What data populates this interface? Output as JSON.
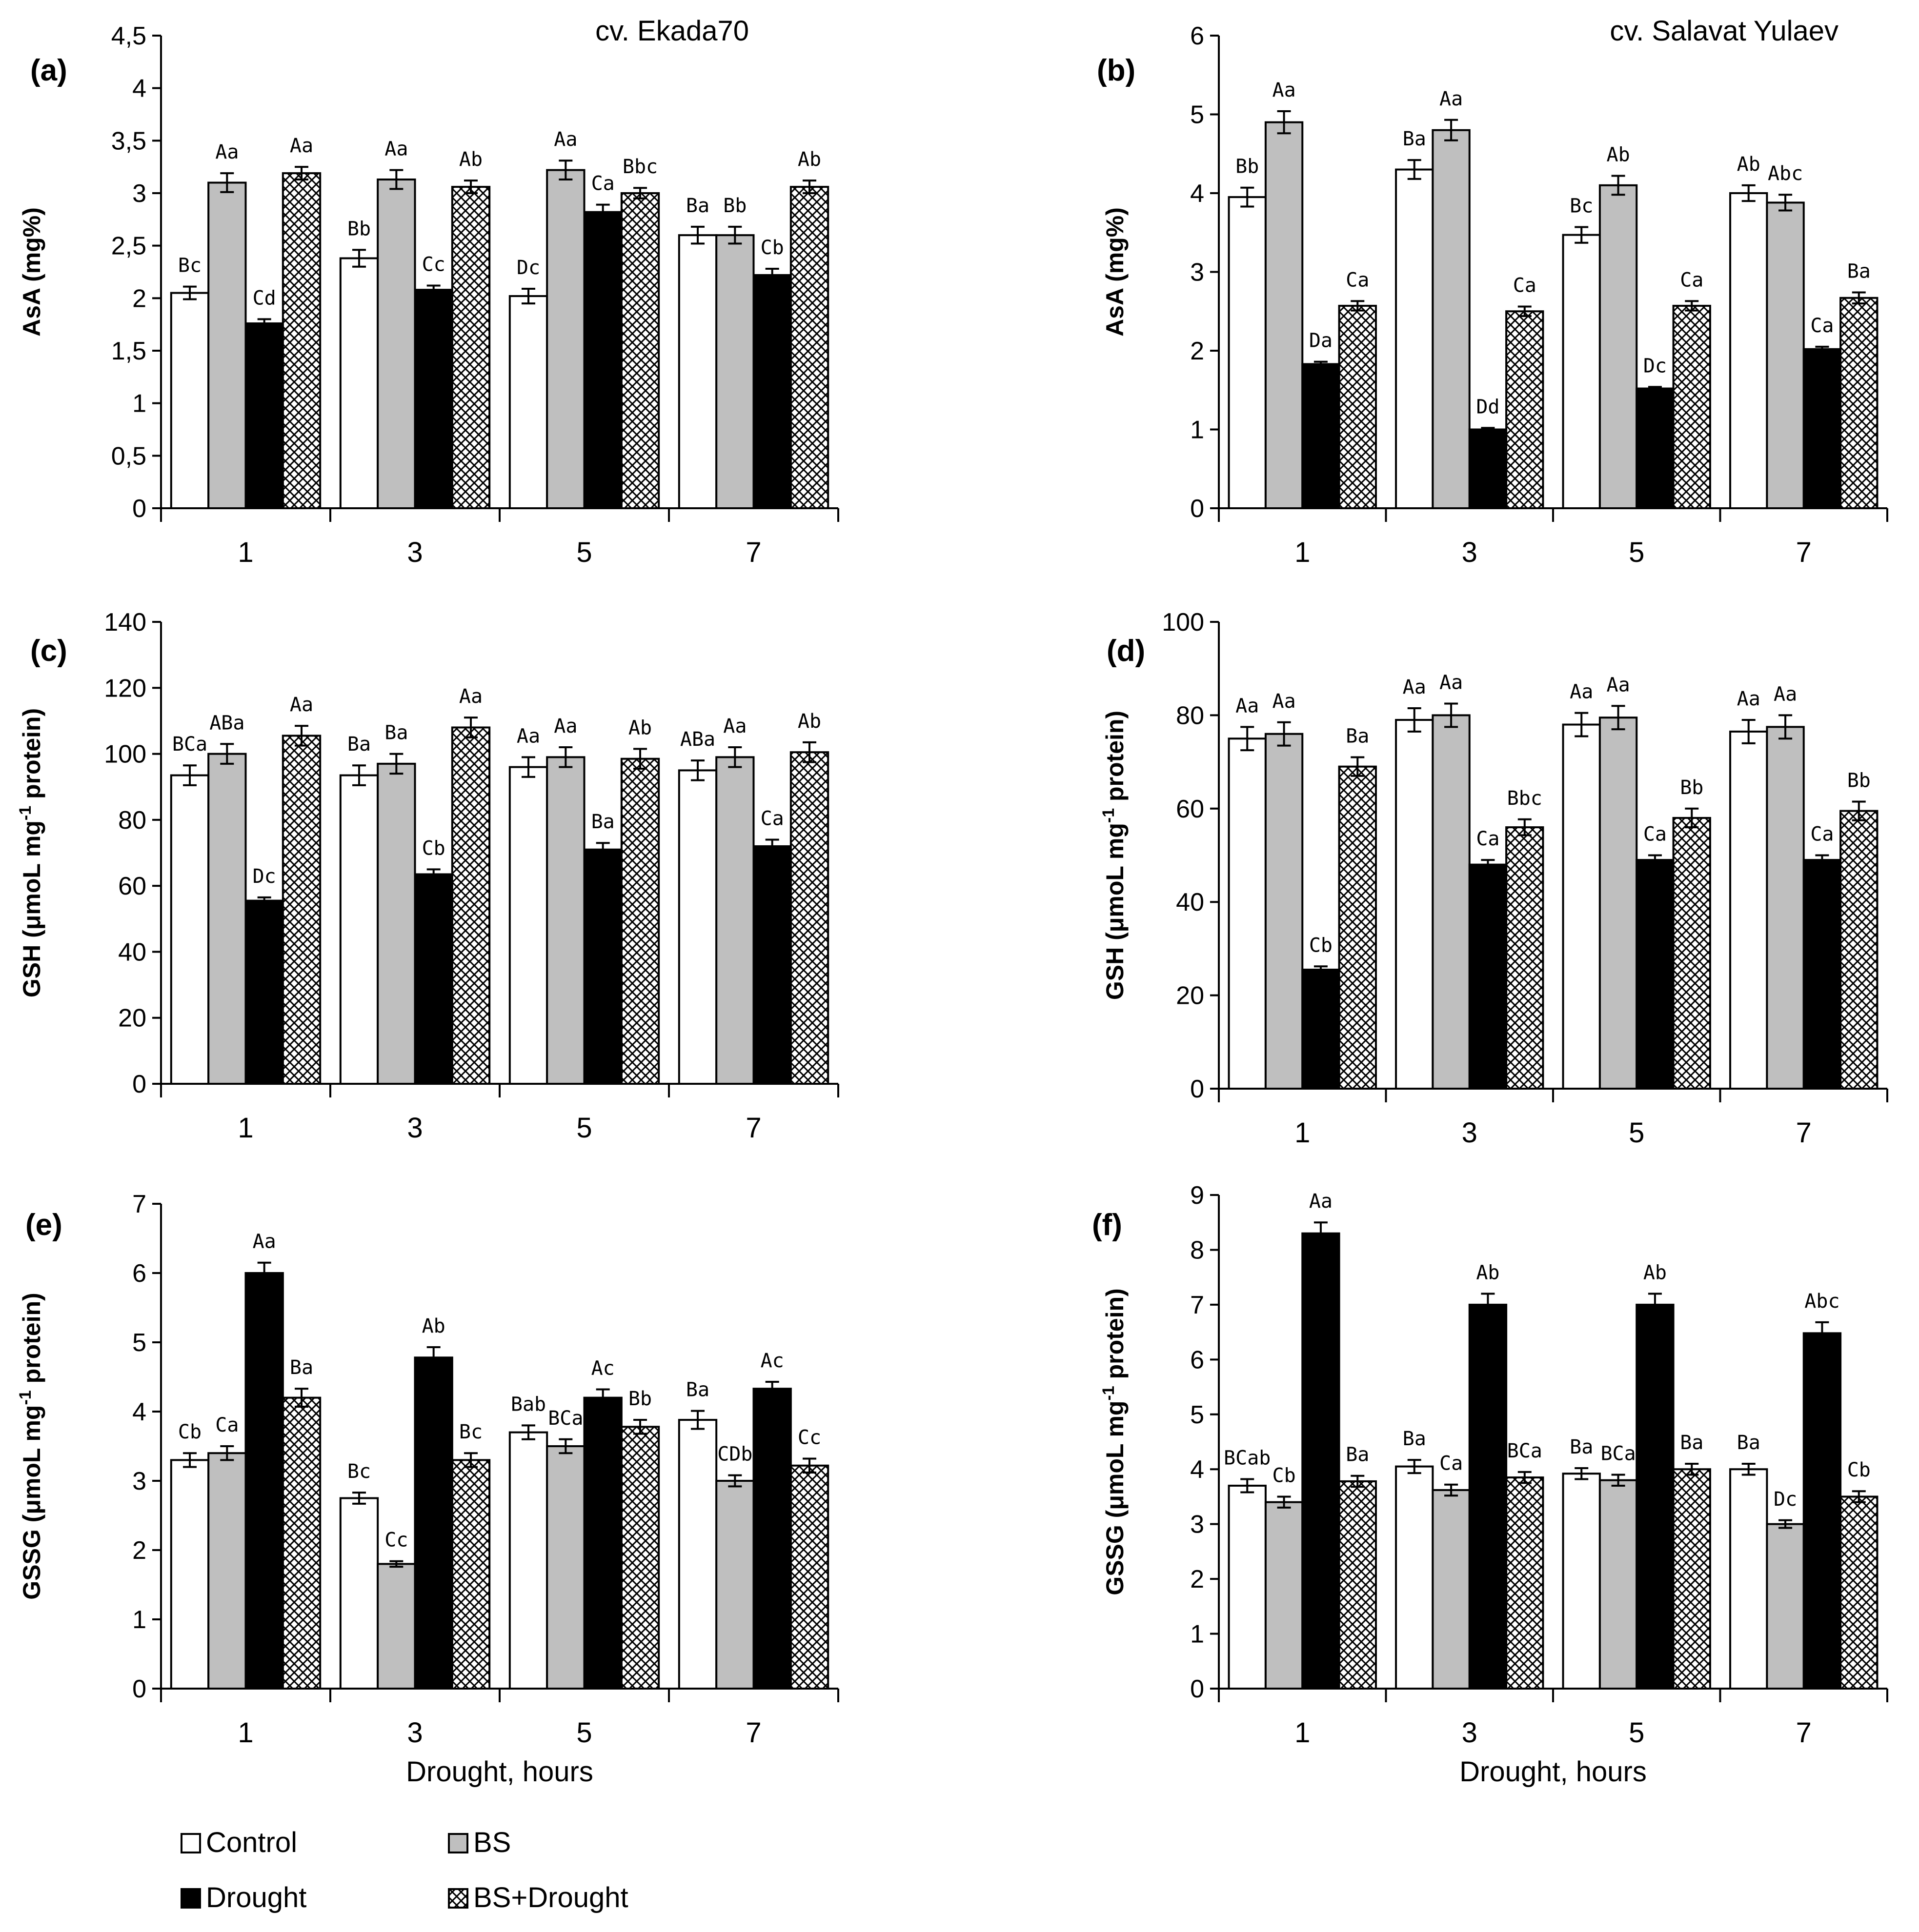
{
  "series": [
    {
      "name": "Control",
      "fill": "#ffffff"
    },
    {
      "name": "BS",
      "fill": "#bfbfbf"
    },
    {
      "name": "Drought",
      "fill": "#000000"
    },
    {
      "name": "BS+Drought",
      "fill": "pattern"
    }
  ],
  "chart_data": [
    {
      "type": "bar",
      "panel": "(a)",
      "cultivar": "cv. Ekada70",
      "ylabel": "AsA (mg%)",
      "xlabel": "",
      "categories": [
        "1",
        "3",
        "5",
        "7"
      ],
      "ylim": [
        0,
        4.5
      ],
      "yticks": [
        "0",
        "0,5",
        "1",
        "1,5",
        "2",
        "2,5",
        "3",
        "3,5",
        "4",
        "4,5"
      ],
      "ystep": 0.5,
      "series": [
        {
          "name": "Control",
          "values": [
            2.05,
            2.38,
            2.02,
            2.6
          ],
          "errors": [
            0.06,
            0.08,
            0.07,
            0.08
          ],
          "labels": [
            "Bc",
            "Bb",
            "Dc",
            "Ba"
          ]
        },
        {
          "name": "BS",
          "values": [
            3.1,
            3.13,
            3.22,
            2.6
          ],
          "errors": [
            0.09,
            0.09,
            0.09,
            0.08
          ],
          "labels": [
            "Aa",
            "Aa",
            "Aa",
            "Bb"
          ]
        },
        {
          "name": "Drought",
          "values": [
            1.76,
            2.08,
            2.82,
            2.22
          ],
          "errors": [
            0.04,
            0.04,
            0.07,
            0.06
          ],
          "labels": [
            "Cd",
            "Cc",
            "Ca",
            "Cb"
          ]
        },
        {
          "name": "BS+Drought",
          "values": [
            3.19,
            3.06,
            3.0,
            3.06
          ],
          "errors": [
            0.06,
            0.06,
            0.05,
            0.06
          ],
          "labels": [
            "Aa",
            "Ab",
            "Bbc",
            "Ab"
          ]
        }
      ]
    },
    {
      "type": "bar",
      "panel": "(b)",
      "cultivar": "cv. Salavat Yulaev",
      "ylabel": "AsA (mg%)",
      "xlabel": "",
      "categories": [
        "1",
        "3",
        "5",
        "7"
      ],
      "ylim": [
        0,
        6
      ],
      "yticks": [
        "0",
        "1",
        "2",
        "3",
        "4",
        "5",
        "6"
      ],
      "ystep": 1,
      "series": [
        {
          "name": "Control",
          "values": [
            3.95,
            4.3,
            3.47,
            4.0
          ],
          "errors": [
            0.12,
            0.12,
            0.1,
            0.1
          ],
          "labels": [
            "Bb",
            "Ba",
            "Bc",
            "Ab"
          ]
        },
        {
          "name": "BS",
          "values": [
            4.9,
            4.8,
            4.1,
            3.88
          ],
          "errors": [
            0.14,
            0.13,
            0.12,
            0.1
          ],
          "labels": [
            "Aa",
            "Aa",
            "Ab",
            "Abc"
          ]
        },
        {
          "name": "Drought",
          "values": [
            1.83,
            1.0,
            1.52,
            2.02
          ],
          "errors": [
            0.03,
            0.02,
            0.02,
            0.03
          ],
          "labels": [
            "Da",
            "Dd",
            "Dc",
            "Ca"
          ]
        },
        {
          "name": "BS+Drought",
          "values": [
            2.57,
            2.5,
            2.57,
            2.67
          ],
          "errors": [
            0.06,
            0.06,
            0.06,
            0.07
          ],
          "labels": [
            "Ca",
            "Ca",
            "Ca",
            "Ba"
          ]
        }
      ]
    },
    {
      "type": "bar",
      "panel": "(c)",
      "cultivar": "",
      "ylabel": "GSH (μmoL mg",
      "ylabel_sup": "-1",
      "ylabel_tail": " protein)",
      "xlabel": "",
      "categories": [
        "1",
        "3",
        "5",
        "7"
      ],
      "ylim": [
        0,
        140
      ],
      "yticks": [
        "0",
        "20",
        "40",
        "60",
        "80",
        "100",
        "120",
        "140"
      ],
      "ystep": 20,
      "series": [
        {
          "name": "Control",
          "values": [
            93.5,
            93.5,
            96,
            95
          ],
          "errors": [
            3,
            3,
            3,
            3
          ],
          "labels": [
            "BCa",
            "Ba",
            "Aa",
            "ABa"
          ]
        },
        {
          "name": "BS",
          "values": [
            100,
            97,
            99,
            99
          ],
          "errors": [
            3,
            3,
            3,
            3
          ],
          "labels": [
            "ABa",
            "Ba",
            "Aa",
            "Aa"
          ]
        },
        {
          "name": "Drought",
          "values": [
            55.5,
            63.5,
            71,
            72
          ],
          "errors": [
            1,
            1.5,
            2,
            2
          ],
          "labels": [
            "Dc",
            "Cb",
            "Ba",
            "Ca"
          ]
        },
        {
          "name": "BS+Drought",
          "values": [
            105.5,
            108,
            98.5,
            100.5
          ],
          "errors": [
            3,
            3,
            3,
            3
          ],
          "labels": [
            "Aa",
            "Aa",
            "Ab",
            "Ab"
          ]
        }
      ]
    },
    {
      "type": "bar",
      "panel": "(d)",
      "cultivar": "",
      "ylabel": "GSH (μmoL mg",
      "ylabel_sup": "-1",
      "ylabel_tail": " protein)",
      "xlabel": "",
      "categories": [
        "1",
        "3",
        "5",
        "7"
      ],
      "ylim": [
        0,
        100
      ],
      "yticks": [
        "0",
        "20",
        "40",
        "60",
        "80",
        "100"
      ],
      "ystep": 20,
      "series": [
        {
          "name": "Control",
          "values": [
            75,
            79,
            78,
            76.5
          ],
          "errors": [
            2.5,
            2.5,
            2.5,
            2.5
          ],
          "labels": [
            "Aa",
            "Aa",
            "Aa",
            "Aa"
          ]
        },
        {
          "name": "BS",
          "values": [
            76,
            80,
            79.5,
            77.5
          ],
          "errors": [
            2.5,
            2.5,
            2.5,
            2.5
          ],
          "labels": [
            "Aa",
            "Aa",
            "Aa",
            "Aa"
          ]
        },
        {
          "name": "Drought",
          "values": [
            25.5,
            48,
            49,
            49
          ],
          "errors": [
            0.7,
            1,
            1,
            1
          ],
          "labels": [
            "Cb",
            "Ca",
            "Ca",
            "Ca"
          ]
        },
        {
          "name": "BS+Drought",
          "values": [
            69,
            56,
            58,
            59.5
          ],
          "errors": [
            2,
            1.7,
            2,
            2
          ],
          "labels": [
            "Ba",
            "Bbc",
            "Bb",
            "Bb"
          ]
        }
      ]
    },
    {
      "type": "bar",
      "panel": "(e)",
      "cultivar": "",
      "ylabel": "GSSG (μmoL mg",
      "ylabel_sup": "-1",
      "ylabel_tail": " protein)",
      "xlabel": "Drought, hours",
      "categories": [
        "1",
        "3",
        "5",
        "7"
      ],
      "ylim": [
        0,
        7
      ],
      "yticks": [
        "0",
        "1",
        "2",
        "3",
        "4",
        "5",
        "6",
        "7"
      ],
      "ystep": 1,
      "series": [
        {
          "name": "Control",
          "values": [
            3.3,
            2.75,
            3.7,
            3.88
          ],
          "errors": [
            0.1,
            0.08,
            0.1,
            0.13
          ],
          "labels": [
            "Cb",
            "Bc",
            "Bab",
            "Ba"
          ]
        },
        {
          "name": "BS",
          "values": [
            3.4,
            1.8,
            3.5,
            3.0
          ],
          "errors": [
            0.1,
            0.04,
            0.1,
            0.08
          ],
          "labels": [
            "Ca",
            "Cc",
            "BCa",
            "CDb"
          ]
        },
        {
          "name": "Drought",
          "values": [
            6.0,
            4.78,
            4.2,
            4.33
          ],
          "errors": [
            0.15,
            0.15,
            0.12,
            0.1
          ],
          "labels": [
            "Aa",
            "Ab",
            "Ac",
            "Ac"
          ]
        },
        {
          "name": "BS+Drought",
          "values": [
            4.2,
            3.3,
            3.78,
            3.22
          ],
          "errors": [
            0.13,
            0.1,
            0.1,
            0.1
          ],
          "labels": [
            "Ba",
            "Bc",
            "Bb",
            "Cc"
          ]
        }
      ]
    },
    {
      "type": "bar",
      "panel": "(f)",
      "cultivar": "",
      "ylabel": "GSSG (μmoL mg",
      "ylabel_sup": "-1",
      "ylabel_tail": " protein)",
      "xlabel": "Drought, hours",
      "categories": [
        "1",
        "3",
        "5",
        "7"
      ],
      "ylim": [
        0,
        9
      ],
      "yticks": [
        "0",
        "1",
        "2",
        "3",
        "4",
        "5",
        "6",
        "7",
        "8",
        "9"
      ],
      "ystep": 1,
      "series": [
        {
          "name": "Control",
          "values": [
            3.7,
            4.05,
            3.92,
            4.0
          ],
          "errors": [
            0.12,
            0.12,
            0.1,
            0.1
          ],
          "labels": [
            "BCab",
            "Ba",
            "Ba",
            "Ba"
          ]
        },
        {
          "name": "BS",
          "values": [
            3.4,
            3.62,
            3.8,
            3.0
          ],
          "errors": [
            0.1,
            0.1,
            0.1,
            0.07
          ],
          "labels": [
            "Cb",
            "Ca",
            "BCa",
            "Dc"
          ]
        },
        {
          "name": "Drought",
          "values": [
            8.3,
            7.0,
            7.0,
            6.48
          ],
          "errors": [
            0.2,
            0.2,
            0.2,
            0.2
          ],
          "labels": [
            "Aa",
            "Ab",
            "Ab",
            "Abc"
          ]
        },
        {
          "name": "BS+Drought",
          "values": [
            3.78,
            3.85,
            4.0,
            3.5
          ],
          "errors": [
            0.1,
            0.1,
            0.1,
            0.1
          ],
          "labels": [
            "Ba",
            "BCa",
            "Ba",
            "Cb"
          ]
        }
      ]
    }
  ]
}
